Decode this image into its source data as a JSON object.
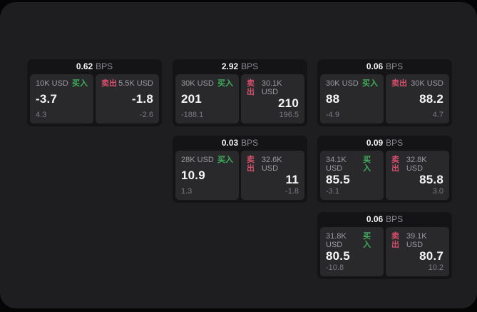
{
  "labels": {
    "bps": "BPS",
    "buy": "买入",
    "sell": "卖出"
  },
  "colors": {
    "buy_green": "#3fae5a",
    "sell_red": "#d54f6b",
    "window_bg": "#1e1e21",
    "card_bg": "#141416",
    "panel_bg": "#29292c"
  },
  "cards": [
    {
      "bps": "0.62",
      "buy": {
        "size": "10K USD",
        "price": "-3.7",
        "sub": "4.3"
      },
      "sell": {
        "size": "5.5K USD",
        "price": "-1.8",
        "sub": "-2.6"
      }
    },
    {
      "bps": "2.92",
      "buy": {
        "size": "30K USD",
        "price": "201",
        "sub": "-188.1"
      },
      "sell": {
        "size": "30.1K USD",
        "price": "210",
        "sub": "196.5"
      }
    },
    {
      "bps": "0.06",
      "buy": {
        "size": "30K USD",
        "price": "88",
        "sub": "-4.9"
      },
      "sell": {
        "size": "30K USD",
        "price": "88.2",
        "sub": "4.7"
      }
    },
    {
      "bps": "0.03",
      "buy": {
        "size": "28K USD",
        "price": "10.9",
        "sub": "1.3"
      },
      "sell": {
        "size": "32.6K USD",
        "price": "11",
        "sub": "-1.8"
      }
    },
    {
      "bps": "0.09",
      "buy": {
        "size": "34.1K USD",
        "price": "85.5",
        "sub": "-3.1"
      },
      "sell": {
        "size": "32.8K USD",
        "price": "85.8",
        "sub": "3.0"
      }
    },
    {
      "bps": "0.06",
      "buy": {
        "size": "31.8K USD",
        "price": "80.5",
        "sub": "-10.8"
      },
      "sell": {
        "size": "39.1K USD",
        "price": "80.7",
        "sub": "10.2"
      }
    }
  ]
}
